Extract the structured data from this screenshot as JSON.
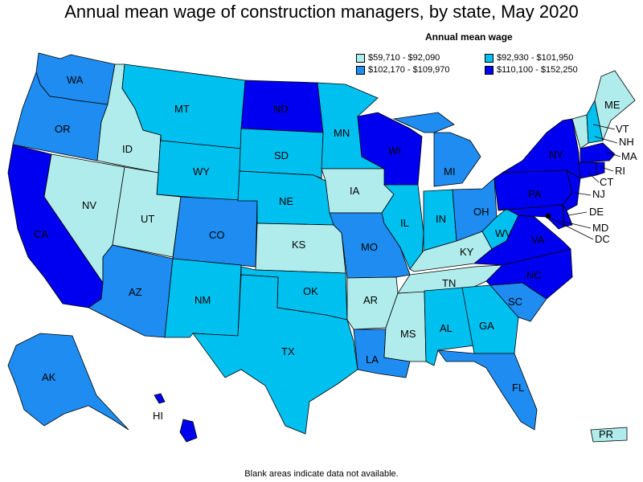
{
  "title": "Annual mean wage of construction managers, by state, May 2020",
  "legend": {
    "title": "Annual mean wage",
    "items": [
      {
        "label": "$59,710 - $92,090",
        "color": "#b0ecec"
      },
      {
        "label": "$92,930 - $101,950",
        "color": "#00c0f0"
      },
      {
        "label": "$102,170 - $109,970",
        "color": "#1e8cf0"
      },
      {
        "label": "$110,100 - $152,250",
        "color": "#0000f0"
      }
    ]
  },
  "footnote": "Blank areas indicate data not available.",
  "states": {
    "WA": "WA",
    "OR": "OR",
    "CA": "CA",
    "ID": "ID",
    "NV": "NV",
    "MT": "MT",
    "WY": "WY",
    "UT": "UT",
    "AZ": "AZ",
    "CO": "CO",
    "NM": "NM",
    "ND": "ND",
    "SD": "SD",
    "NE": "NE",
    "KS": "KS",
    "OK": "OK",
    "TX": "TX",
    "MN": "MN",
    "IA": "IA",
    "MO": "MO",
    "AR": "AR",
    "LA": "LA",
    "WI": "WI",
    "IL": "IL",
    "MS": "MS",
    "MI": "MI",
    "IN": "IN",
    "KY": "KY",
    "TN": "TN",
    "AL": "AL",
    "OH": "OH",
    "GA": "GA",
    "FL": "FL",
    "SC": "SC",
    "NC": "NC",
    "VA": "VA",
    "WV": "WV",
    "PA": "PA",
    "NY": "NY",
    "ME": "ME",
    "VT": "VT",
    "NH": "NH",
    "MA": "MA",
    "RI": "RI",
    "CT": "CT",
    "NJ": "NJ",
    "DE": "DE",
    "MD": "MD",
    "DC": "DC",
    "AK": "AK",
    "HI": "HI",
    "PR": "PR"
  }
}
